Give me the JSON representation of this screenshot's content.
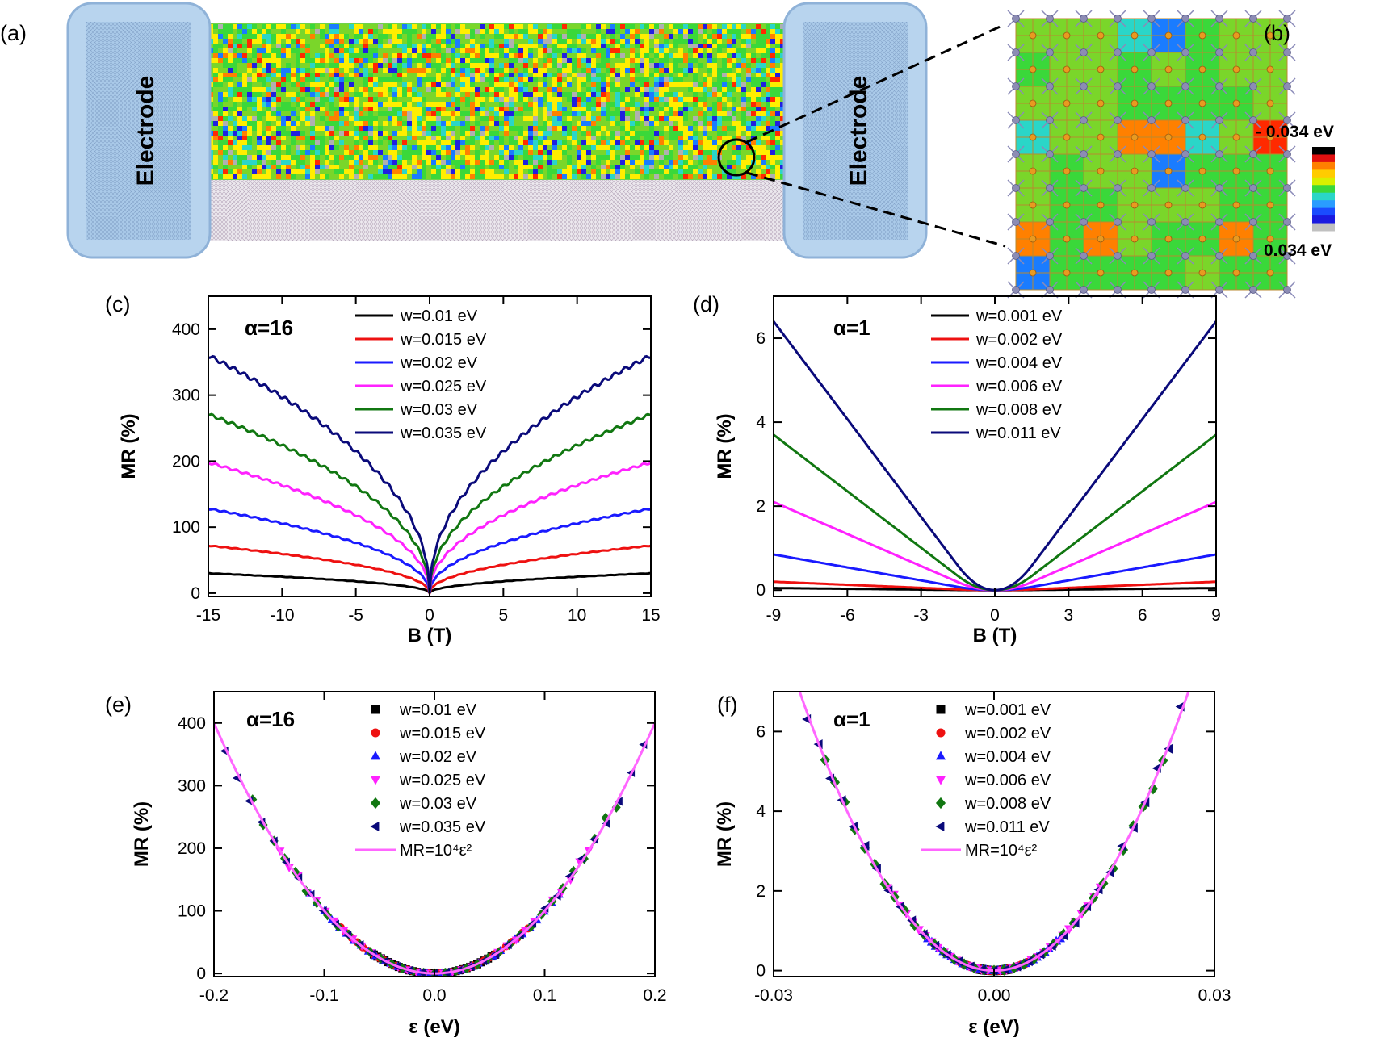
{
  "panel_labels": {
    "a": "(a)",
    "b": "(b)",
    "c": "(c)",
    "d": "(d)",
    "e": "(e)",
    "f": "(f)"
  },
  "device": {
    "electrode_label": "Electrode",
    "electrode_color": "#b8d4ee",
    "electrode_border": "#8fb2d8",
    "disorder_palette": [
      "#ff2a00",
      "#ff8000",
      "#ffee00",
      "#7ad62a",
      "#3ad83a",
      "#2ad6c8",
      "#1a7cff",
      "#2020e0",
      "#b0b0b0"
    ],
    "zoom_grid": [
      [
        3,
        3,
        3,
        5,
        6,
        4,
        3,
        3
      ],
      [
        4,
        3,
        3,
        4,
        3,
        4,
        3,
        3
      ],
      [
        3,
        3,
        3,
        4,
        4,
        4,
        4,
        3
      ],
      [
        5,
        3,
        3,
        1,
        1,
        5,
        3,
        0
      ],
      [
        3,
        4,
        3,
        3,
        6,
        4,
        4,
        4
      ],
      [
        3,
        4,
        4,
        3,
        3,
        3,
        4,
        4
      ],
      [
        1,
        4,
        1,
        3,
        4,
        4,
        1,
        4
      ],
      [
        6,
        4,
        4,
        4,
        4,
        3,
        4,
        4
      ]
    ]
  },
  "colorbar": {
    "top_label": "- 0.034 eV",
    "bottom_label": "0.034 eV",
    "colors": [
      "#000000",
      "#e01010",
      "#ff8000",
      "#ffcc00",
      "#d8f000",
      "#3ad83a",
      "#2ad6c8",
      "#2a9cff",
      "#1a4cff",
      "#1a1ae0",
      "#c0c0c0"
    ]
  },
  "chart_data": [
    {
      "id": "c",
      "type": "line",
      "alpha_label": "α=16",
      "xlabel": "B (T)",
      "ylabel": "MR (%)",
      "xlim": [
        -15,
        15
      ],
      "ylim": [
        -5,
        450
      ],
      "xticks": [
        -15,
        -10,
        -5,
        0,
        5,
        10,
        15
      ],
      "yticks": [
        0,
        100,
        200,
        300,
        400
      ],
      "model": "power",
      "exponent": 0.47,
      "series": [
        {
          "name": "w=0.01 eV",
          "color": "#000000",
          "edge_value": 30
        },
        {
          "name": "w=0.015 eV",
          "color": "#ee1111",
          "edge_value": 72
        },
        {
          "name": "w=0.02 eV",
          "color": "#1a1aff",
          "edge_value": 128
        },
        {
          "name": "w=0.025 eV",
          "color": "#ff22ff",
          "edge_value": 198
        },
        {
          "name": "w=0.03 eV",
          "color": "#117711",
          "edge_value": 271
        },
        {
          "name": "w=0.035 eV",
          "color": "#0a0a7a",
          "edge_value": 360
        }
      ]
    },
    {
      "id": "d",
      "type": "line",
      "alpha_label": "α=1",
      "xlabel": "B (T)",
      "ylabel": "MR (%)",
      "xlim": [
        -9,
        9
      ],
      "ylim": [
        -0.15,
        7
      ],
      "xticks": [
        -9,
        -6,
        -3,
        0,
        3,
        6,
        9
      ],
      "yticks": [
        0,
        2,
        4,
        6
      ],
      "model": "quadlinear",
      "crossover": 1.5,
      "series": [
        {
          "name": "w=0.001 eV",
          "color": "#000000",
          "edge_value": 0.05
        },
        {
          "name": "w=0.002 eV",
          "color": "#ee1111",
          "edge_value": 0.2
        },
        {
          "name": "w=0.004 eV",
          "color": "#1a1aff",
          "edge_value": 0.85
        },
        {
          "name": "w=0.006 eV",
          "color": "#ff22ff",
          "edge_value": 2.1
        },
        {
          "name": "w=0.008 eV",
          "color": "#117711",
          "edge_value": 3.7
        },
        {
          "name": "w=0.011 eV",
          "color": "#0a0a7a",
          "edge_value": 6.4
        }
      ]
    },
    {
      "id": "e",
      "type": "scatter",
      "alpha_label": "α=16",
      "xlabel": "ε (eV)",
      "ylabel": "MR (%)",
      "xlim": [
        -0.2,
        0.2
      ],
      "ylim": [
        -5,
        450
      ],
      "xticks": [
        -0.2,
        -0.1,
        0.0,
        0.1,
        0.2
      ],
      "xtick_labels": [
        "-0.2",
        "-0.1",
        "0.0",
        "0.1",
        "0.2"
      ],
      "yticks": [
        0,
        100,
        200,
        300,
        400
      ],
      "fit": {
        "label": "MR=10⁴ε²",
        "coefficient": 10000,
        "color": "#ff66ff"
      },
      "series": [
        {
          "name": "w=0.01 eV",
          "color": "#000000",
          "marker": "square",
          "eps_max": 0.055
        },
        {
          "name": "w=0.015 eV",
          "color": "#ee1111",
          "marker": "circle",
          "eps_max": 0.085
        },
        {
          "name": "w=0.02 eV",
          "color": "#1a1aff",
          "marker": "triangle-up",
          "eps_max": 0.113
        },
        {
          "name": "w=0.025 eV",
          "color": "#ff22ff",
          "marker": "triangle-down",
          "eps_max": 0.14
        },
        {
          "name": "w=0.03 eV",
          "color": "#117711",
          "marker": "diamond",
          "eps_max": 0.165
        },
        {
          "name": "w=0.035 eV",
          "color": "#0a0a7a",
          "marker": "triangle-left",
          "eps_max": 0.19
        }
      ]
    },
    {
      "id": "f",
      "type": "scatter",
      "alpha_label": "α=1",
      "xlabel": "ε (eV)",
      "ylabel": "MR (%)",
      "xlim": [
        -0.03,
        0.03
      ],
      "ylim": [
        -0.15,
        7
      ],
      "xticks": [
        -0.03,
        0.0,
        0.03
      ],
      "xtick_labels": [
        "-0.03",
        "0.00",
        "0.03"
      ],
      "yticks": [
        0,
        2,
        4,
        6
      ],
      "fit": {
        "label": "MR=10⁴ε²",
        "coefficient": 10000,
        "color": "#ff66ff"
      },
      "series": [
        {
          "name": "w=0.001 eV",
          "color": "#000000",
          "marker": "square",
          "eps_max": 0.002
        },
        {
          "name": "w=0.002 eV",
          "color": "#ee1111",
          "marker": "circle",
          "eps_max": 0.0045
        },
        {
          "name": "w=0.004 eV",
          "color": "#1a1aff",
          "marker": "triangle-up",
          "eps_max": 0.009
        },
        {
          "name": "w=0.006 eV",
          "color": "#ff22ff",
          "marker": "triangle-down",
          "eps_max": 0.0145
        },
        {
          "name": "w=0.008 eV",
          "color": "#117711",
          "marker": "diamond",
          "eps_max": 0.023
        },
        {
          "name": "w=0.011 eV",
          "color": "#0a0a7a",
          "marker": "triangle-left",
          "eps_max": 0.027
        }
      ]
    }
  ]
}
